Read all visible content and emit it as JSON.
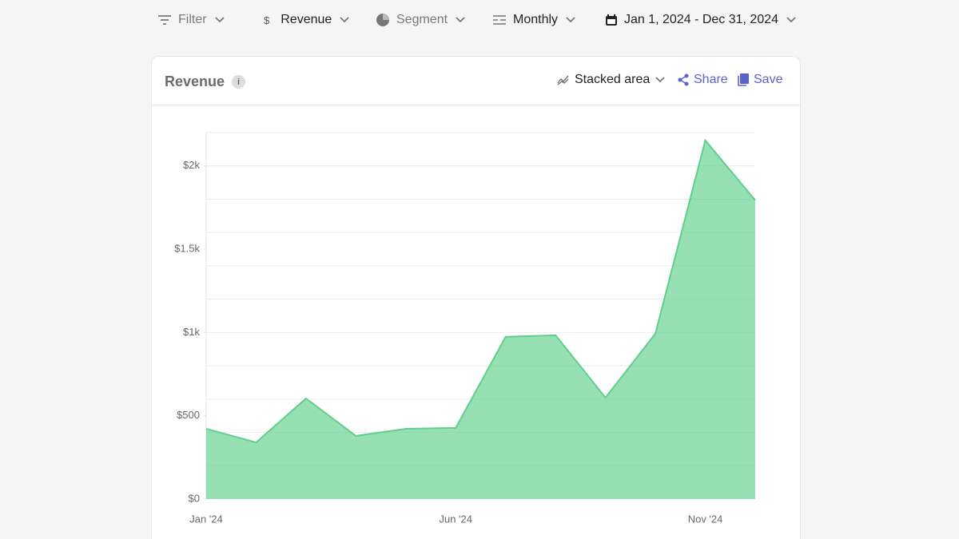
{
  "toolbar": {
    "items": [
      {
        "label": "Filter"
      },
      {
        "icon": "$",
        "label": "Revenue"
      },
      {
        "label": "Segment"
      },
      {
        "label": "Monthly"
      },
      {
        "label": "Jan 1, 2024 - Dec 31, 2024"
      }
    ]
  },
  "card": {
    "title": "Revenue",
    "chart_type_label": "Stacked area",
    "share": "Share",
    "save": "Save"
  },
  "chart_data": {
    "type": "area",
    "categories": [
      "Jan '24",
      null,
      null,
      null,
      null,
      "Jun '24",
      null,
      null,
      null,
      null,
      "Nov '24",
      null
    ],
    "series": [
      {
        "name": "Revenue",
        "color": "#5fcf8a",
        "values": [
          422,
          340,
          604,
          379,
          422,
          427,
          974,
          983,
          609,
          993,
          2153,
          1794
        ]
      }
    ],
    "ylim": [
      0,
      2200
    ],
    "yticks": [
      {
        "value": 0,
        "label": "$0"
      },
      {
        "value": 500,
        "label": "$500"
      },
      {
        "value": 1000,
        "label": "$1k"
      },
      {
        "value": 1500,
        "label": "$1.5k"
      },
      {
        "value": 2000,
        "label": "$2k"
      }
    ],
    "ygrid": [
      200,
      400,
      600,
      800,
      1000,
      1200,
      1400,
      1600,
      1800,
      2000,
      2200
    ],
    "grid": true
  }
}
